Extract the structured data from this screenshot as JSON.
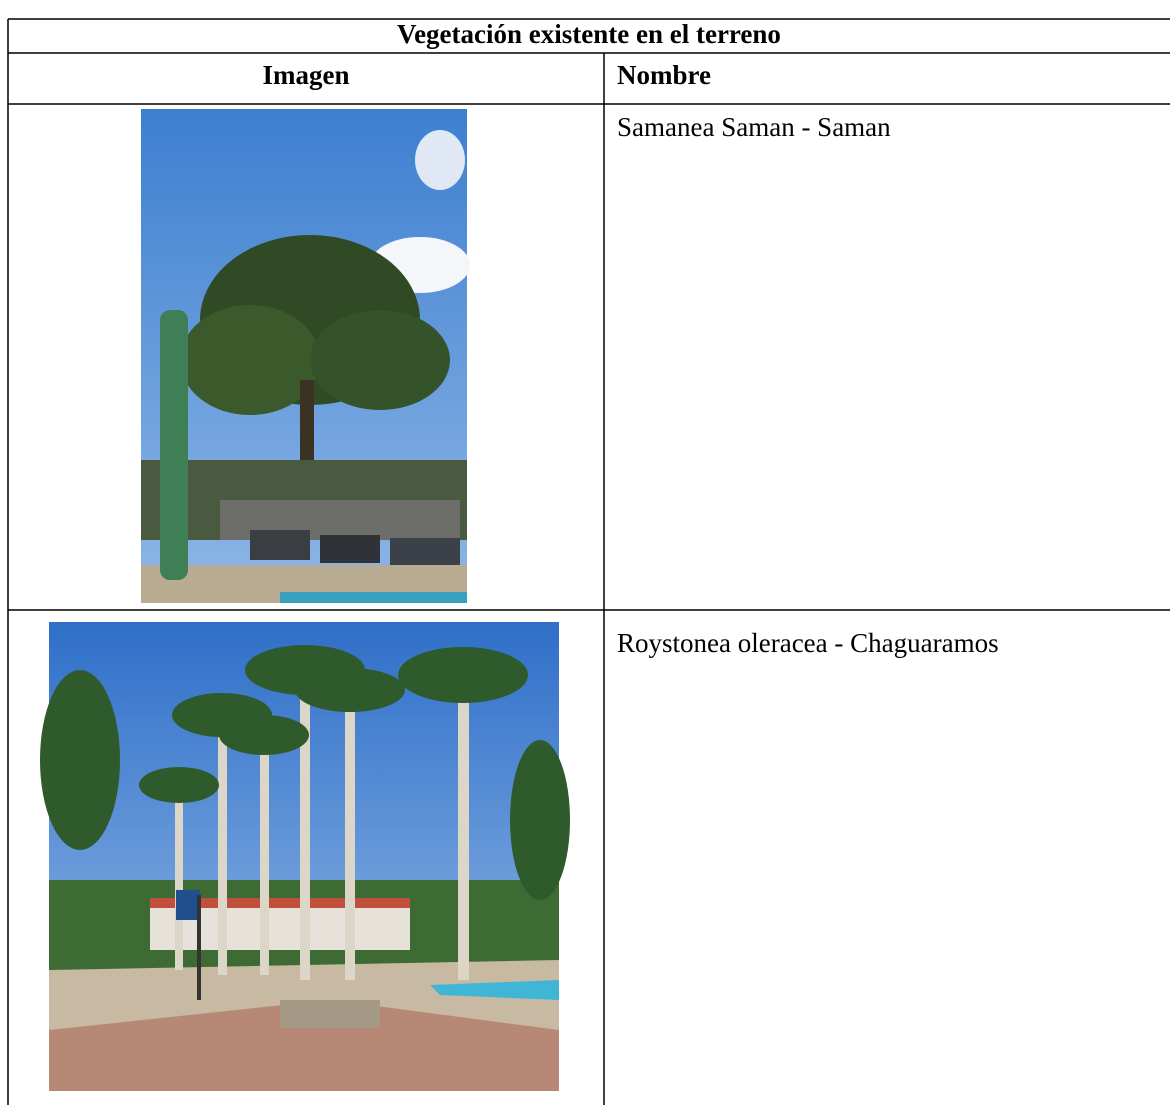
{
  "table": {
    "title": "Vegetación existente en el terreno",
    "header": [
      "Imagen",
      "Nombre"
    ],
    "rows": [
      {
        "nombre": "Samanea Saman - Saman"
      },
      {
        "nombre": "Roystonea oleracea - Chaguaramos"
      }
    ]
  }
}
